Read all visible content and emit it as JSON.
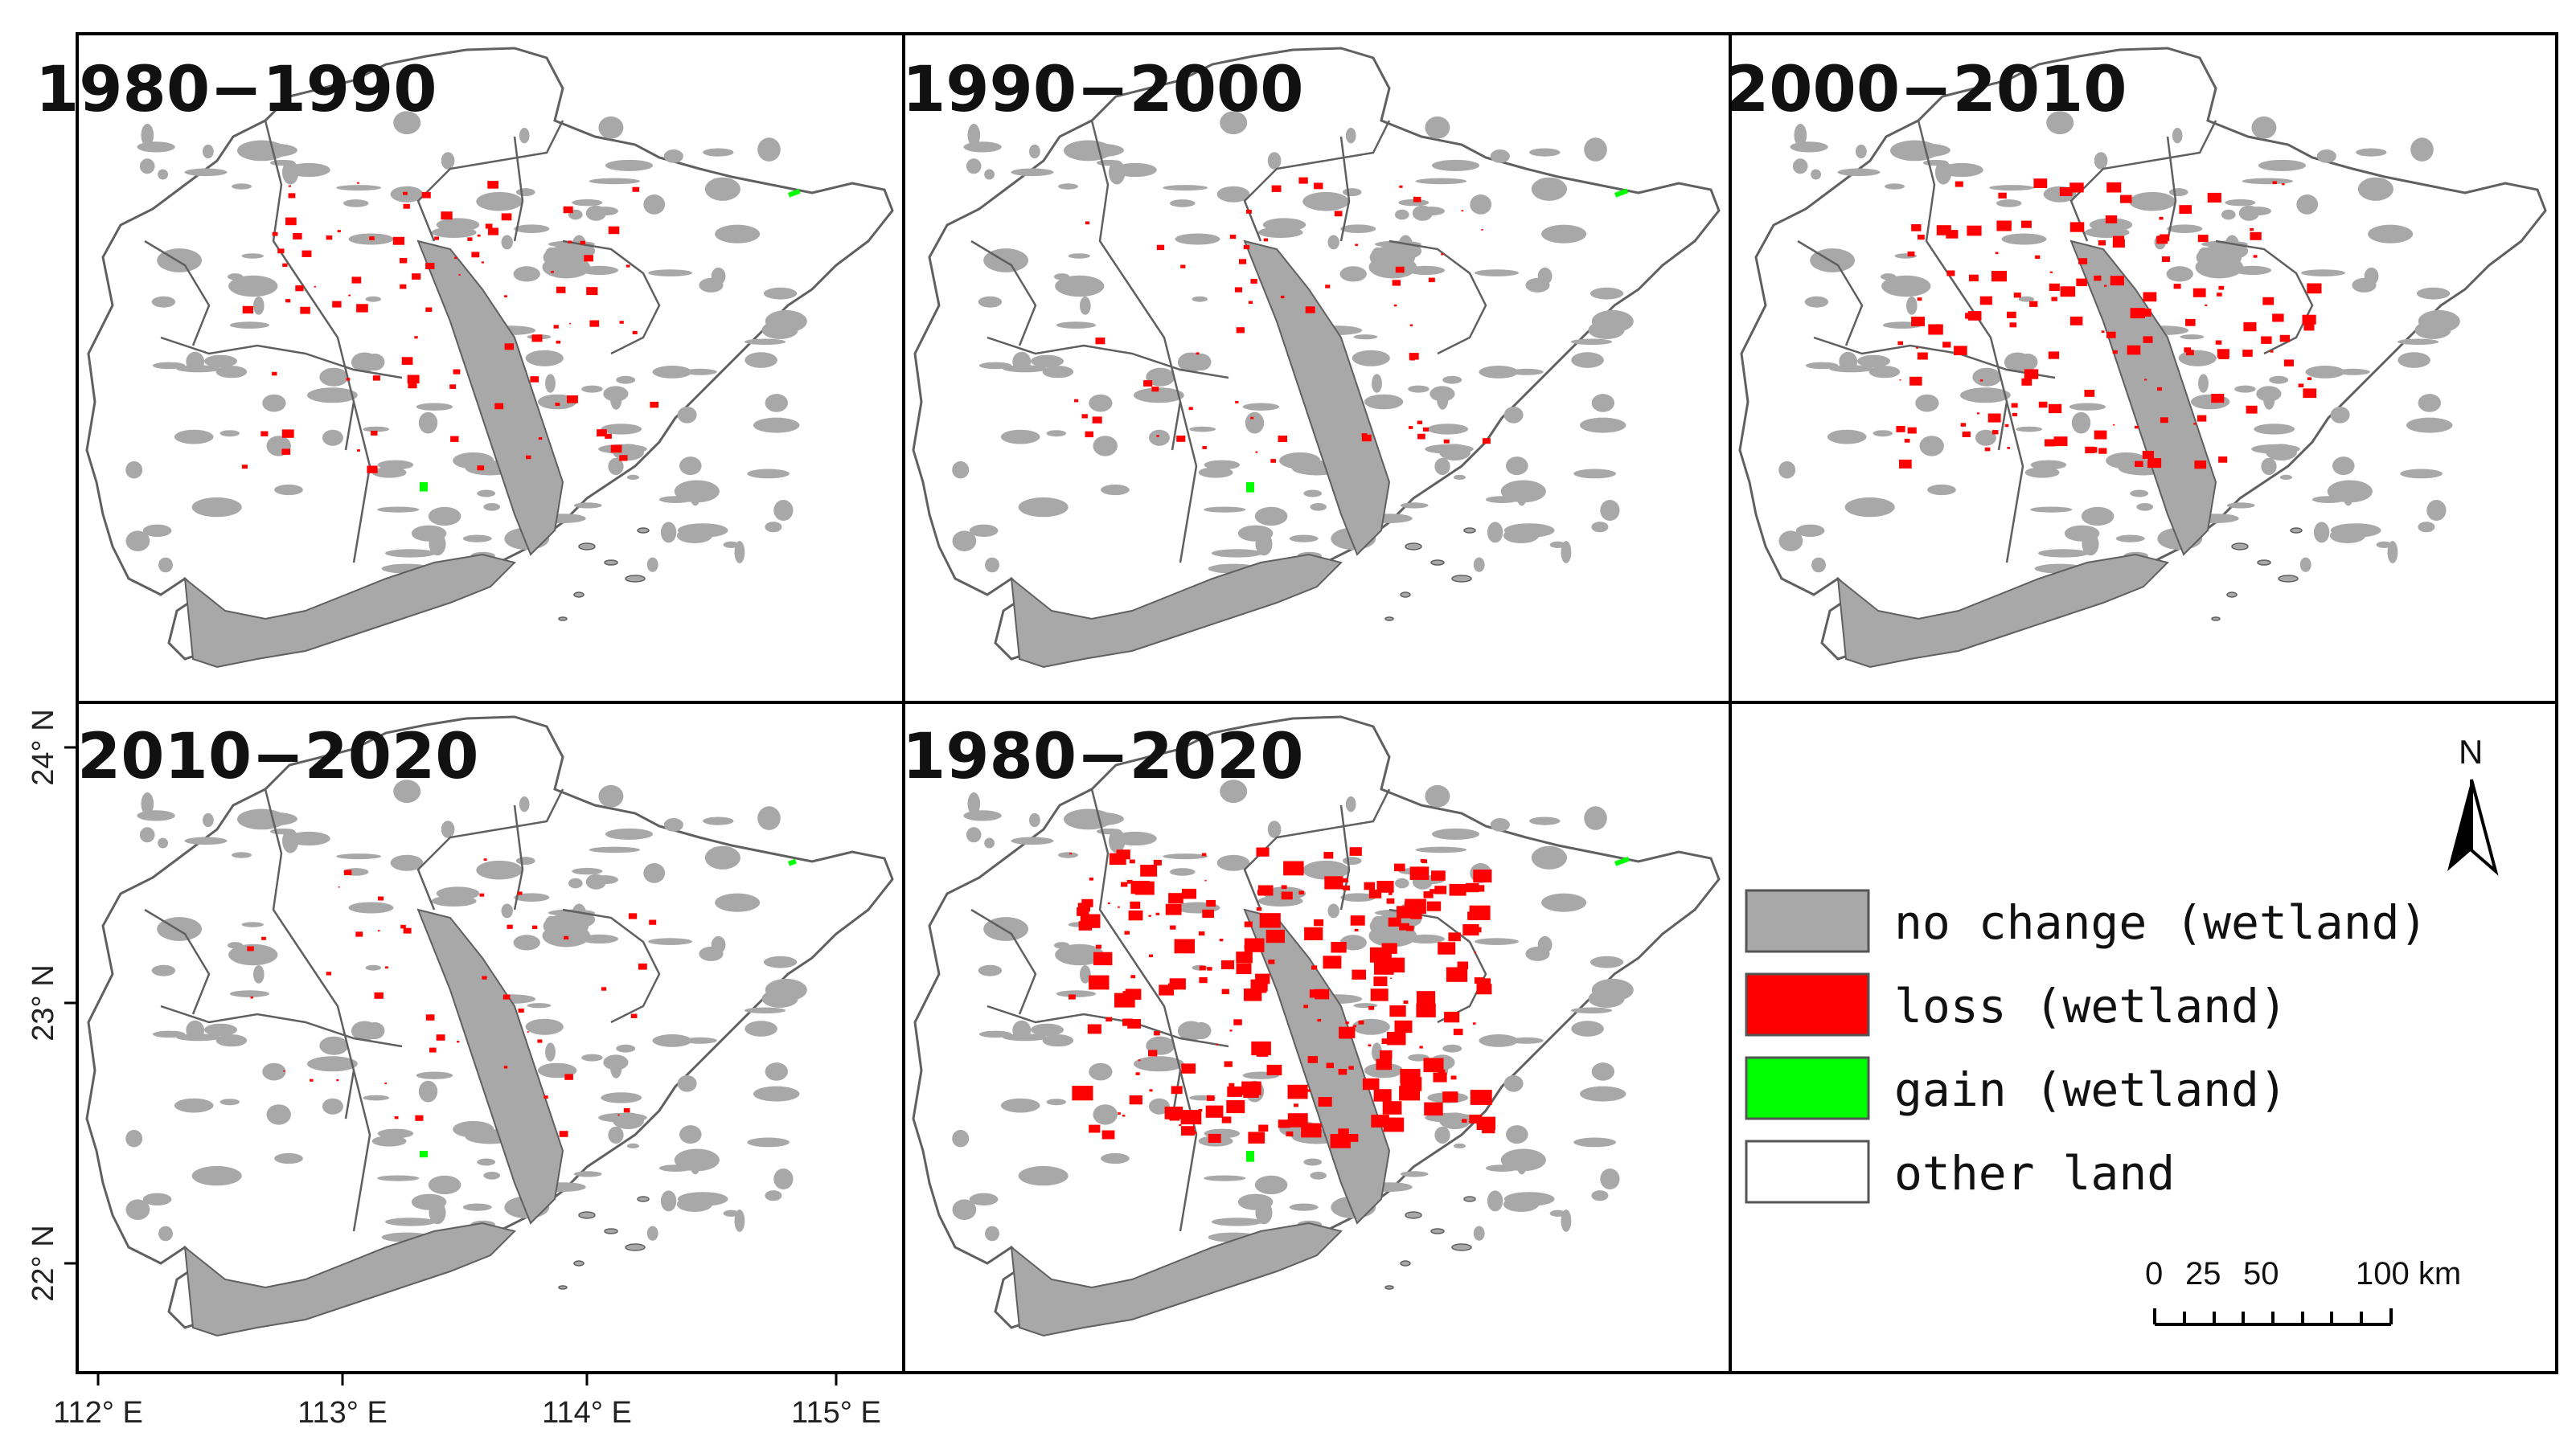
{
  "panels": [
    {
      "title": "1980−1990",
      "loss_intensity": 0.35,
      "gain_intensity": 0.25
    },
    {
      "title": "1990−2000",
      "loss_intensity": 0.22,
      "gain_intensity": 0.3
    },
    {
      "title": "2000−2010",
      "loss_intensity": 0.55,
      "gain_intensity": 0.0
    },
    {
      "title": "2010−2020",
      "loss_intensity": 0.18,
      "gain_intensity": 0.1
    },
    {
      "title": "1980−2020",
      "loss_intensity": 0.95,
      "gain_intensity": 0.35
    }
  ],
  "legend": {
    "items": [
      {
        "label": "no change (wetland)",
        "color": "#a8a8a8"
      },
      {
        "label": "loss (wetland)",
        "color": "#ff0000"
      },
      {
        "label": "gain (wetland)",
        "color": "#00ff00"
      },
      {
        "label": "other land",
        "color": "#ffffff"
      }
    ]
  },
  "north_arrow": {
    "label": "N",
    "icon": "north-arrow-icon"
  },
  "scale_bar": {
    "ticks": [
      "0",
      "25",
      "50",
      "100 km"
    ]
  },
  "axes": {
    "longitude_labels": [
      "112° E",
      "113° E",
      "114° E",
      "115° E"
    ],
    "latitude_labels": [
      "24° N",
      "23° N",
      "22° N"
    ]
  },
  "colors": {
    "no_change": "#a8a8a8",
    "loss": "#ff0000",
    "gain": "#00ff00",
    "boundary": "#606060",
    "frame": "#000000"
  }
}
